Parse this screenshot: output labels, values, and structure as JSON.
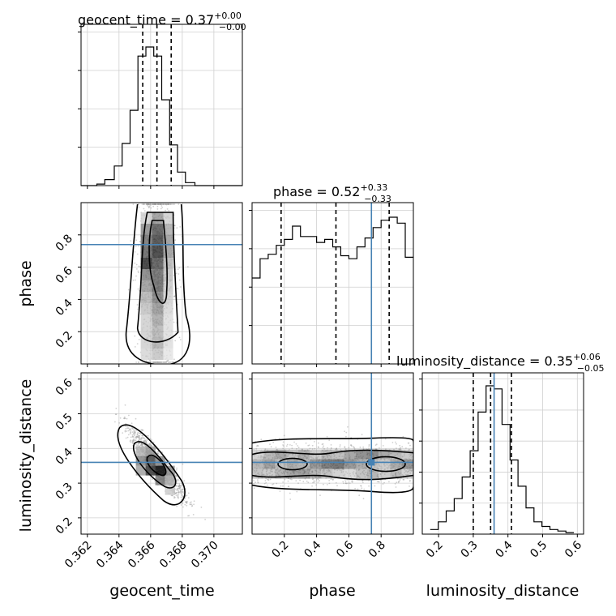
{
  "chart_data": {
    "type": "corner",
    "truth_color": "#4682b4",
    "truths": {
      "geocent_time": null,
      "phase": 0.74,
      "luminosity_distance": 0.36
    },
    "parameters": [
      {
        "name": "geocent_time",
        "label": "geocent_time",
        "title": "geocent_time = 0.37",
        "title_value": "0.37",
        "title_err_plus": "+0.00",
        "title_err_minus": "−0.00",
        "range": [
          0.3616,
          0.3718
        ],
        "ticks": [
          0.362,
          0.364,
          0.366,
          0.368,
          0.37
        ],
        "tick_labels": [
          "0.362",
          "0.364",
          "0.366",
          "0.368",
          "0.370"
        ],
        "quantiles": [
          0.3655,
          0.3664,
          0.3673
        ],
        "hist_edges": [
          0.3616,
          0.3621,
          0.3626,
          0.3631,
          0.3637,
          0.3642,
          0.3647,
          0.3652,
          0.3657,
          0.3662,
          0.3667,
          0.3672,
          0.3677,
          0.3682,
          0.3688,
          0.3693,
          0.3698,
          0.3703,
          0.3708,
          0.3713,
          0.3718
        ],
        "hist_counts": [
          0,
          0,
          1,
          4,
          13,
          28,
          50,
          86,
          92,
          86,
          57,
          27,
          9,
          2,
          0,
          0,
          0,
          0,
          0,
          0
        ]
      },
      {
        "name": "phase",
        "label": "phase",
        "title": "phase = 0.52",
        "title_value": "0.52",
        "title_err_plus": "+0.33",
        "title_err_minus": "−0.33",
        "range": [
          0.0,
          1.0
        ],
        "ticks": [
          0.2,
          0.4,
          0.6,
          0.8
        ],
        "tick_labels": [
          "0.2",
          "0.4",
          "0.6",
          "0.8"
        ],
        "quantiles": [
          0.18,
          0.52,
          0.85
        ],
        "hist_edges": [
          0.0,
          0.05,
          0.1,
          0.15,
          0.2,
          0.25,
          0.3,
          0.35,
          0.4,
          0.45,
          0.5,
          0.55,
          0.6,
          0.65,
          0.7,
          0.75,
          0.8,
          0.85,
          0.9,
          0.95,
          1.0
        ],
        "hist_counts": [
          58,
          71,
          74,
          80,
          84,
          93,
          86,
          86,
          82,
          84,
          79,
          73,
          71,
          79,
          85,
          92,
          97,
          99,
          95,
          72
        ]
      },
      {
        "name": "luminosity_distance",
        "label": "luminosity_distance",
        "title": "luminosity_distance = 0.35",
        "title_value": "0.35",
        "title_err_plus": "+0.06",
        "title_err_minus": "−0.05",
        "range": [
          0.153,
          0.618
        ],
        "ticks": [
          0.2,
          0.3,
          0.4,
          0.5,
          0.6
        ],
        "tick_labels": [
          "0.2",
          "0.3",
          "0.4",
          "0.5",
          "0.6"
        ],
        "quantiles": [
          0.3,
          0.35,
          0.41
        ],
        "hist_edges": [
          0.176,
          0.199,
          0.222,
          0.245,
          0.268,
          0.291,
          0.314,
          0.337,
          0.36,
          0.383,
          0.406,
          0.429,
          0.452,
          0.475,
          0.498,
          0.521,
          0.544,
          0.567,
          0.59
        ],
        "hist_counts": [
          3,
          8,
          15,
          23,
          37,
          54,
          79,
          96,
          94,
          71,
          48,
          31,
          17,
          8,
          5,
          3,
          2,
          1
        ]
      }
    ],
    "ylabels": [
      "phase",
      "luminosity_distance"
    ]
  }
}
